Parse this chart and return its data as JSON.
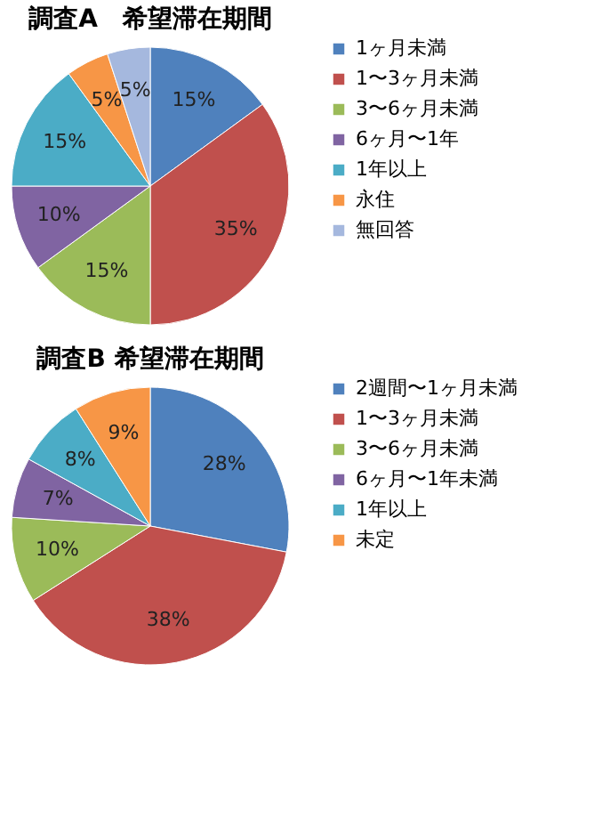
{
  "chart_data": [
    {
      "type": "pie",
      "title": "調査A　希望滞在期間",
      "categories": [
        "1ヶ月未満",
        "1〜3ヶ月未満",
        "3〜6ヶ月未満",
        "6ヶ月〜1年",
        "1年以上",
        "永住",
        "無回答"
      ],
      "values": [
        15,
        35,
        15,
        10,
        15,
        5,
        5
      ],
      "value_labels": [
        "15%",
        "35%",
        "15%",
        "10%",
        "15%",
        "5%",
        "5%"
      ],
      "colors": [
        "#4f81bd",
        "#c0504d",
        "#9bbb59",
        "#8064a2",
        "#4bacc6",
        "#f79646",
        "#a5b8de"
      ],
      "legend": "right"
    },
    {
      "type": "pie",
      "title": "調査B  希望滞在期間",
      "categories": [
        "2週間〜1ヶ月未満",
        "1〜3ヶ月未満",
        "3〜6ヶ月未満",
        "6ヶ月〜1年未満",
        "1年以上",
        "未定"
      ],
      "values": [
        28,
        38,
        10,
        7,
        8,
        9
      ],
      "value_labels": [
        "28%",
        "38%",
        "10%",
        "7%",
        "8%",
        "9%"
      ],
      "colors": [
        "#4f81bd",
        "#c0504d",
        "#9bbb59",
        "#8064a2",
        "#4bacc6",
        "#f79646"
      ],
      "legend": "right"
    }
  ]
}
